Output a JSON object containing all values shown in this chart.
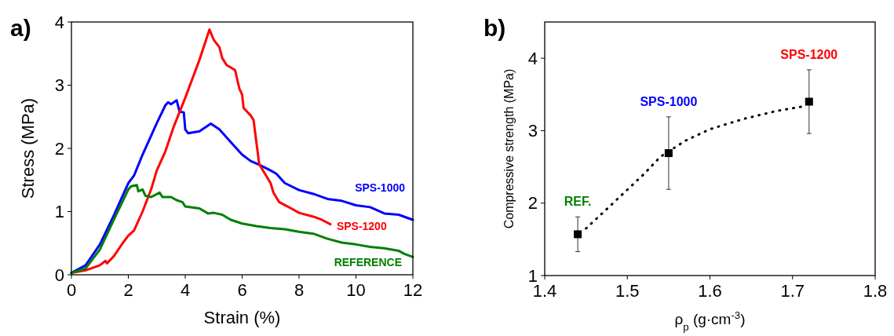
{
  "chart_data": [
    {
      "type": "line",
      "title": "a)",
      "xlabel": "Strain (%)",
      "ylabel": "Stress (MPa)",
      "xlim": [
        0,
        12
      ],
      "ylim": [
        0,
        4
      ],
      "xticks": [
        0,
        2,
        4,
        6,
        8,
        10,
        12
      ],
      "yticks": [
        0,
        1,
        2,
        3,
        4
      ],
      "grid": false,
      "line_style": "solid",
      "series": [
        {
          "name": "SPS-1000",
          "color": "#0000ff",
          "x": [
            0,
            0.5,
            1,
            1.5,
            2,
            2.2,
            2.5,
            3,
            3.3,
            3.4,
            3.5,
            3.7,
            3.8,
            3.95,
            4,
            4.1,
            4.5,
            4.9,
            5.2,
            5.6,
            6,
            6.3,
            6.6,
            7,
            7.2,
            7.5,
            8,
            8.5,
            9,
            9.5,
            10,
            10.5,
            11,
            11.5,
            12
          ],
          "values": [
            0.03,
            0.15,
            0.48,
            0.95,
            1.45,
            1.57,
            1.9,
            2.4,
            2.68,
            2.73,
            2.7,
            2.76,
            2.58,
            2.57,
            2.3,
            2.24,
            2.27,
            2.39,
            2.3,
            2.1,
            1.9,
            1.8,
            1.74,
            1.65,
            1.6,
            1.45,
            1.34,
            1.28,
            1.2,
            1.17,
            1.1,
            1.07,
            0.97,
            0.95,
            0.87
          ]
        },
        {
          "name": "SPS-1200",
          "color": "#ff0000",
          "x": [
            0,
            0.5,
            1,
            1.2,
            1.25,
            1.5,
            1.8,
            2,
            2.2,
            2.5,
            2.8,
            3,
            3.3,
            3.6,
            4,
            4.5,
            4.85,
            5,
            5.2,
            5.3,
            5.45,
            5.6,
            5.75,
            5.9,
            6,
            6.05,
            6.3,
            6.4,
            6.5,
            6.6,
            6.8,
            7,
            7.1,
            7.3,
            7.6,
            8,
            8.5,
            8.8,
            9.1
          ],
          "values": [
            0.03,
            0.07,
            0.15,
            0.22,
            0.18,
            0.3,
            0.5,
            0.62,
            0.7,
            1,
            1.35,
            1.65,
            1.95,
            2.35,
            2.8,
            3.4,
            3.88,
            3.72,
            3.6,
            3.43,
            3.32,
            3.28,
            3.24,
            2.95,
            2.85,
            2.64,
            2.52,
            2.45,
            2.1,
            1.75,
            1.6,
            1.45,
            1.3,
            1.15,
            1.08,
            0.98,
            0.92,
            0.87,
            0.8
          ]
        },
        {
          "name": "REFERENCE",
          "color": "#008000",
          "x": [
            0,
            0.5,
            1,
            1.5,
            2,
            2.1,
            2.3,
            2.35,
            2.5,
            2.6,
            2.8,
            3.1,
            3.2,
            3.5,
            3.7,
            3.9,
            4,
            4.5,
            4.8,
            5,
            5.3,
            5.6,
            6,
            6.5,
            7,
            7.5,
            8,
            8.5,
            9,
            9.5,
            10,
            10.5,
            11,
            11.5,
            11.7,
            12
          ],
          "values": [
            0.03,
            0.1,
            0.4,
            0.88,
            1.35,
            1.4,
            1.42,
            1.32,
            1.35,
            1.25,
            1.23,
            1.3,
            1.23,
            1.23,
            1.18,
            1.15,
            1.08,
            1.05,
            0.97,
            0.98,
            0.95,
            0.87,
            0.81,
            0.77,
            0.74,
            0.72,
            0.68,
            0.65,
            0.57,
            0.51,
            0.48,
            0.44,
            0.42,
            0.38,
            0.33,
            0.28
          ]
        }
      ]
    },
    {
      "type": "scatter",
      "title": "b)",
      "xlabel": "ρ$_{p}$ (g·cm$^{-3}$)",
      "ylabel": "Compressive strength (MPa)",
      "xlim": [
        1.4,
        1.8
      ],
      "ylim": [
        1,
        4.5
      ],
      "xticks": [
        1.4,
        1.5,
        1.6,
        1.7,
        1.8
      ],
      "yticks": [
        1,
        2,
        3,
        4
      ],
      "grid": false,
      "annotations": [
        {
          "text": "SPS-1000",
          "x": 1.55,
          "y": 3.19
        },
        {
          "text": "SPS-1200",
          "x": 1.72,
          "y": 3.84
        },
        {
          "text": "REF.",
          "x": 1.44,
          "y": 1.81
        }
      ],
      "series": [
        {
          "type": "scatter",
          "marker": "square",
          "color": "#000000",
          "x": [
            1.44,
            1.55,
            1.72
          ],
          "values": [
            1.57,
            2.69,
            3.4
          ],
          "errors": [
            [
              1.33,
              1.81
            ],
            [
              2.19,
              3.19
            ],
            [
              2.96,
              3.84
            ]
          ]
        },
        {
          "type": "line",
          "line_style": "dotted",
          "color": "#000000",
          "x": [
            1.45,
            1.48,
            1.52,
            1.54,
            1.57,
            1.6,
            1.64,
            1.68,
            1.71
          ],
          "values": [
            1.65,
            1.97,
            2.4,
            2.64,
            2.86,
            3.02,
            3.16,
            3.27,
            3.33
          ]
        }
      ]
    }
  ]
}
